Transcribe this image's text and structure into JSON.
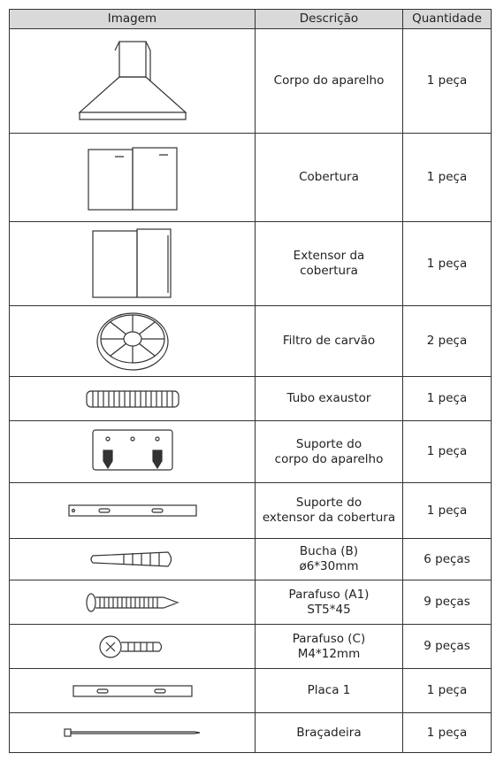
{
  "table": {
    "header": [
      "Imagem",
      "Descrição",
      "Quantidade"
    ],
    "rows": [
      [
        "Corpo do aparelho",
        "1 peça"
      ],
      [
        "Cobertura",
        "1 peça"
      ],
      [
        "Extensor da\ncobertura",
        "1 peça"
      ],
      [
        "Filtro de carvão",
        "2 peça"
      ],
      [
        "Tubo exaustor",
        "1 peça"
      ],
      [
        "Suporte do\ncorpo do aparelho",
        "1 peça"
      ],
      [
        "Suporte do\nextensor da cobertura",
        "1 peça"
      ],
      [
        "Bucha (B)\nø6*30mm",
        "6 peças"
      ],
      [
        "Parafuso (A1)\nST5*45",
        "9 peças"
      ],
      [
        "Parafuso (C)\nM4*12mm",
        "9 peças"
      ],
      [
        "Placa 1",
        "1 peça"
      ],
      [
        "Braçadeira",
        "1 peça"
      ]
    ]
  }
}
